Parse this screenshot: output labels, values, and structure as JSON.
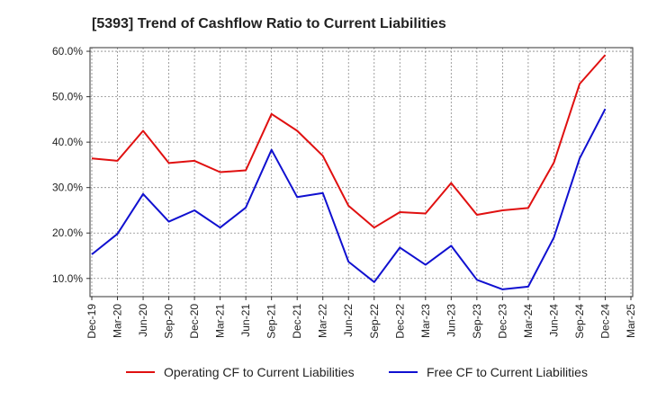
{
  "chart_data": {
    "type": "line",
    "title": "[5393]  Trend of Cashflow Ratio to Current Liabilities",
    "categories": [
      "Dec-19",
      "Mar-20",
      "Jun-20",
      "Sep-20",
      "Dec-20",
      "Mar-21",
      "Jun-21",
      "Sep-21",
      "Dec-21",
      "Mar-22",
      "Jun-22",
      "Sep-22",
      "Dec-22",
      "Mar-23",
      "Jun-23",
      "Sep-23",
      "Dec-23",
      "Mar-24",
      "Jun-24",
      "Sep-24",
      "Dec-24",
      "Mar-25"
    ],
    "ylim": [
      6,
      60.8
    ],
    "yticks": [
      10,
      20,
      30,
      40,
      50,
      60
    ],
    "ytick_labels": [
      "10.0%",
      "20.0%",
      "30.0%",
      "40.0%",
      "50.0%",
      "60.0%"
    ],
    "grid": true,
    "legend_position": "bottom",
    "series": [
      {
        "name": "Operating CF to Current Liabilities",
        "color": "#e01010",
        "values": [
          36.4,
          35.9,
          42.5,
          35.4,
          35.9,
          33.4,
          33.8,
          46.2,
          42.5,
          37.0,
          26.0,
          21.2,
          24.6,
          24.3,
          31.0,
          24.0,
          25.0,
          25.5,
          35.5,
          52.8,
          59.2,
          null
        ]
      },
      {
        "name": "Free CF to Current Liabilities",
        "color": "#1010d0",
        "values": [
          15.3,
          19.8,
          28.6,
          22.5,
          25.0,
          21.2,
          25.6,
          38.3,
          27.9,
          28.8,
          13.7,
          9.2,
          16.8,
          13.0,
          17.2,
          9.7,
          7.6,
          8.2,
          19.0,
          36.4,
          47.3,
          null
        ]
      }
    ]
  }
}
